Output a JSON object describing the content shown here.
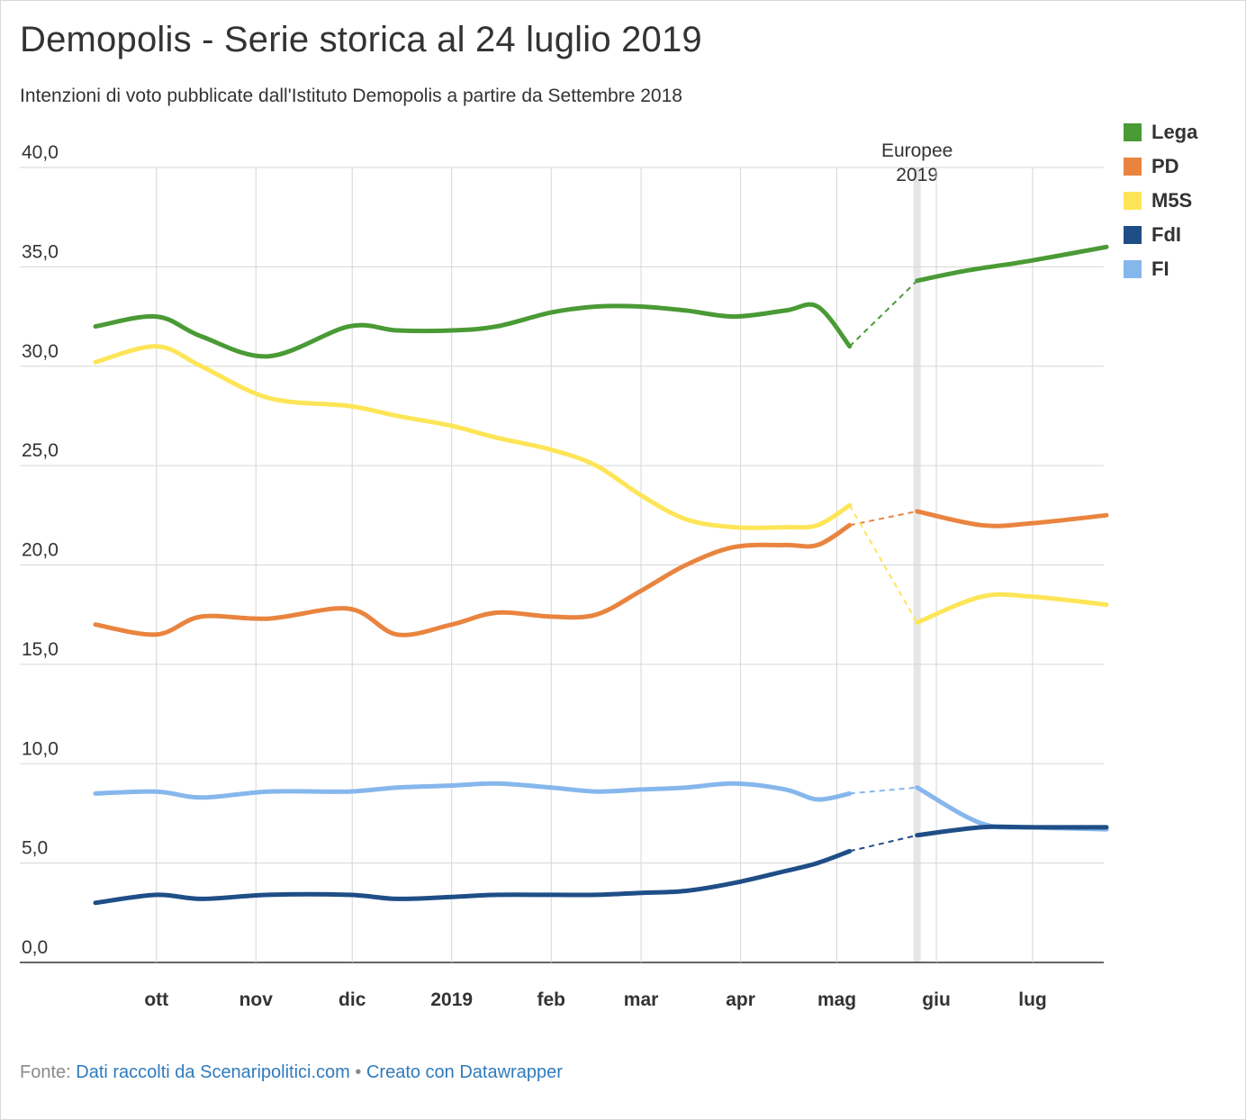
{
  "title": "Demopolis - Serie storica al 24 luglio 2019",
  "subtitle": "Intenzioni di voto pubblicate dall'Istituto Demopolis a partire da Settembre 2018",
  "footer": {
    "source_prefix": "Fonte:",
    "source_link": "Dati raccolti da Scenaripolitici.com",
    "separator": "•",
    "credit_link": "Creato con Datawrapper"
  },
  "legend": [
    {
      "name": "Lega",
      "color": "#4a9a35"
    },
    {
      "name": "PD",
      "color": "#e9843f"
    },
    {
      "name": "M5S",
      "color": "#fde557"
    },
    {
      "name": "FdI",
      "color": "#1f4e87"
    },
    {
      "name": "FI",
      "color": "#86b7ec"
    }
  ],
  "chart_data": {
    "type": "line",
    "ylim": [
      0,
      40
    ],
    "yticks": [
      "0,0",
      "5,0",
      "10,0",
      "15,0",
      "20,0",
      "25,0",
      "30,0",
      "35,0",
      "40,0"
    ],
    "xrange": [
      "2018-09-12",
      "2019-07-24"
    ],
    "xticks": [
      {
        "label": "ott",
        "date": "2018-10-01"
      },
      {
        "label": "nov",
        "date": "2018-11-01"
      },
      {
        "label": "dic",
        "date": "2018-12-01"
      },
      {
        "label": "2019",
        "date": "2019-01-01"
      },
      {
        "label": "feb",
        "date": "2019-02-01"
      },
      {
        "label": "mar",
        "date": "2019-03-01"
      },
      {
        "label": "apr",
        "date": "2019-04-01"
      },
      {
        "label": "mag",
        "date": "2019-05-01"
      },
      {
        "label": "giu",
        "date": "2019-06-01"
      },
      {
        "label": "lug",
        "date": "2019-07-01"
      }
    ],
    "gridlines": true,
    "legend_position": "right",
    "annotation": {
      "label_line1": "Europee",
      "label_line2": "2019",
      "date": "2019-05-26"
    },
    "series": [
      {
        "name": "Lega",
        "color": "#4a9a35",
        "x": [
          "2018-09-12",
          "2018-10-01",
          "2018-10-15",
          "2018-11-05",
          "2018-11-30",
          "2018-12-15",
          "2019-01-01",
          "2019-01-15",
          "2019-02-01",
          "2019-02-15",
          "2019-03-01",
          "2019-03-15",
          "2019-03-30",
          "2019-04-15",
          "2019-04-25",
          "2019-05-05",
          "2019-05-26",
          "2019-06-10",
          "2019-06-30",
          "2019-07-24"
        ],
        "y": [
          32.0,
          32.5,
          31.5,
          30.5,
          32.0,
          31.8,
          31.8,
          32.0,
          32.7,
          33.0,
          33.0,
          32.8,
          32.5,
          32.8,
          33.0,
          31.0,
          34.3,
          34.8,
          35.3,
          36.0
        ]
      },
      {
        "name": "PD",
        "color": "#e9843f",
        "x": [
          "2018-09-12",
          "2018-10-01",
          "2018-10-15",
          "2018-11-05",
          "2018-11-30",
          "2018-12-15",
          "2019-01-01",
          "2019-01-15",
          "2019-02-01",
          "2019-02-15",
          "2019-03-01",
          "2019-03-15",
          "2019-03-30",
          "2019-04-15",
          "2019-04-25",
          "2019-05-05",
          "2019-05-26",
          "2019-06-15",
          "2019-07-01",
          "2019-07-24"
        ],
        "y": [
          17.0,
          16.5,
          17.4,
          17.3,
          17.8,
          16.5,
          17.0,
          17.6,
          17.4,
          17.5,
          18.7,
          20.0,
          20.9,
          21.0,
          21.0,
          22.0,
          22.7,
          22.0,
          22.1,
          22.5
        ]
      },
      {
        "name": "M5S",
        "color": "#fde557",
        "x": [
          "2018-09-12",
          "2018-10-01",
          "2018-10-15",
          "2018-11-05",
          "2018-11-30",
          "2018-12-15",
          "2019-01-01",
          "2019-01-15",
          "2019-02-01",
          "2019-02-15",
          "2019-03-01",
          "2019-03-15",
          "2019-03-30",
          "2019-04-15",
          "2019-04-25",
          "2019-05-05",
          "2019-05-26",
          "2019-06-15",
          "2019-07-01",
          "2019-07-24"
        ],
        "y": [
          30.2,
          31.0,
          30.0,
          28.4,
          28.0,
          27.5,
          27.0,
          26.4,
          25.8,
          25.0,
          23.5,
          22.3,
          21.9,
          21.9,
          22.0,
          23.0,
          17.1,
          18.4,
          18.4,
          18.0
        ]
      },
      {
        "name": "FdI",
        "color": "#1f4e87",
        "x": [
          "2018-09-12",
          "2018-10-01",
          "2018-10-15",
          "2018-11-05",
          "2018-11-30",
          "2018-12-15",
          "2019-01-01",
          "2019-01-15",
          "2019-02-01",
          "2019-02-15",
          "2019-03-01",
          "2019-03-15",
          "2019-03-30",
          "2019-04-15",
          "2019-04-25",
          "2019-05-05",
          "2019-05-26",
          "2019-06-15",
          "2019-07-01",
          "2019-07-24"
        ],
        "y": [
          3.0,
          3.4,
          3.2,
          3.4,
          3.4,
          3.2,
          3.3,
          3.4,
          3.4,
          3.4,
          3.5,
          3.6,
          4.0,
          4.6,
          5.0,
          5.6,
          6.4,
          6.8,
          6.8,
          6.8
        ]
      },
      {
        "name": "FI",
        "color": "#86b7ec",
        "x": [
          "2018-09-12",
          "2018-10-01",
          "2018-10-15",
          "2018-11-05",
          "2018-11-30",
          "2018-12-15",
          "2019-01-01",
          "2019-01-15",
          "2019-02-01",
          "2019-02-15",
          "2019-03-01",
          "2019-03-15",
          "2019-03-30",
          "2019-04-15",
          "2019-04-25",
          "2019-05-05",
          "2019-05-26",
          "2019-06-15",
          "2019-07-01",
          "2019-07-24"
        ],
        "y": [
          8.5,
          8.6,
          8.3,
          8.6,
          8.6,
          8.8,
          8.9,
          9.0,
          8.8,
          8.6,
          8.7,
          8.8,
          9.0,
          8.7,
          8.2,
          8.5,
          8.8,
          7.0,
          6.8,
          6.7
        ]
      }
    ],
    "dashed_segment": {
      "from": "2019-05-05",
      "to": "2019-05-26"
    }
  }
}
